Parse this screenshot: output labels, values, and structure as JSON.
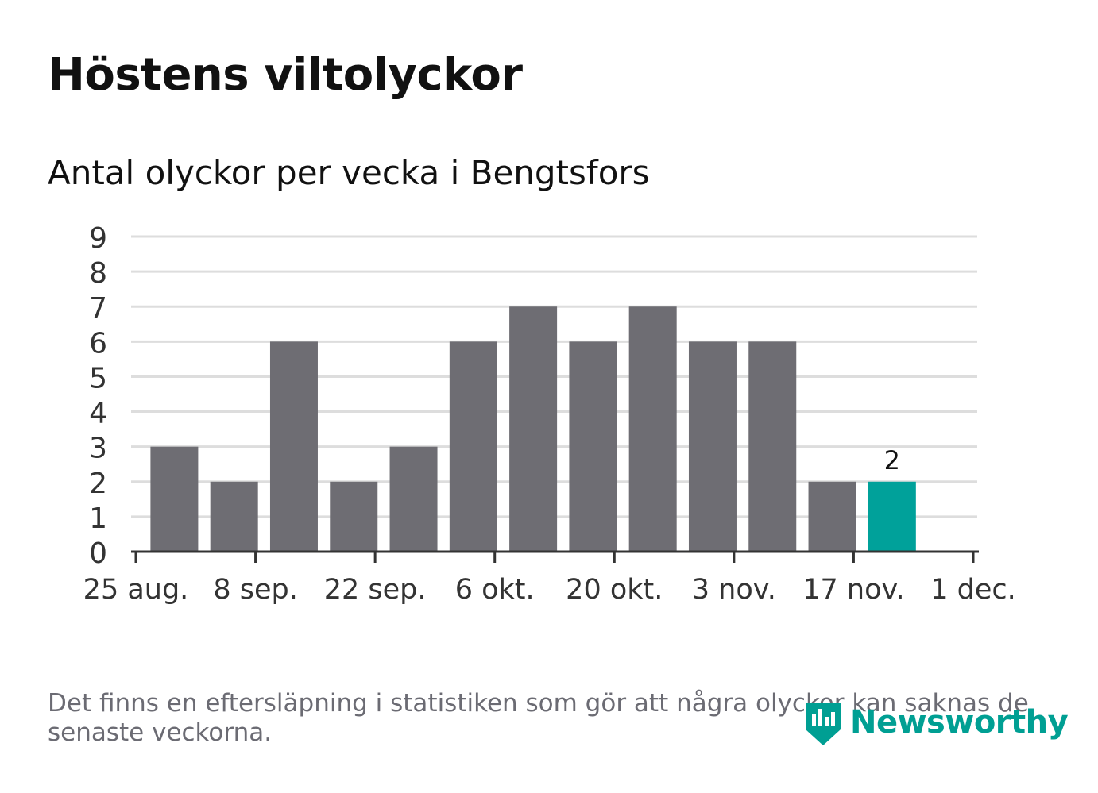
{
  "title": "Höstens viltolyckor",
  "subtitle": "Antal olyckor per vecka i Bengtsfors",
  "footnote": "Det finns en eftersläpning i statistiken som gör att några olyckor kan saknas de senaste veckorna.",
  "logo": {
    "text": "Newsworthy",
    "icon": "newsworthy-logo-icon"
  },
  "colors": {
    "bar": "#6e6d73",
    "highlight": "#00a19a",
    "grid": "#dddddd",
    "axis": "#333333",
    "text": "#333333"
  },
  "chart_data": {
    "type": "bar",
    "title": "Höstens viltolyckor",
    "subtitle": "Antal olyckor per vecka i Bengtsfors",
    "x": [
      "2019-08-26",
      "2019-09-02",
      "2019-09-09",
      "2019-09-16",
      "2019-09-23",
      "2019-09-30",
      "2019-10-07",
      "2019-10-14",
      "2019-10-21",
      "2019-10-28",
      "2019-11-04",
      "2019-11-11",
      "2019-11-18"
    ],
    "values": [
      3,
      2,
      6,
      2,
      3,
      6,
      7,
      6,
      7,
      6,
      6,
      2,
      2
    ],
    "highlight_index": 12,
    "data_labels": [
      {
        "index": 12,
        "text": "2"
      }
    ],
    "ylim": [
      0,
      9
    ],
    "yticks": [
      "0",
      "1",
      "2",
      "3",
      "4",
      "5",
      "6",
      "7",
      "8",
      "9"
    ],
    "xlim": [
      "2019-08-25",
      "2019-12-01"
    ],
    "xtick_labels": [
      "25 aug.",
      "8 sep.",
      "22 sep.",
      "6 okt.",
      "20 okt.",
      "3 nov.",
      "17 nov.",
      "1 dec."
    ],
    "grid": true,
    "legend": "none"
  }
}
